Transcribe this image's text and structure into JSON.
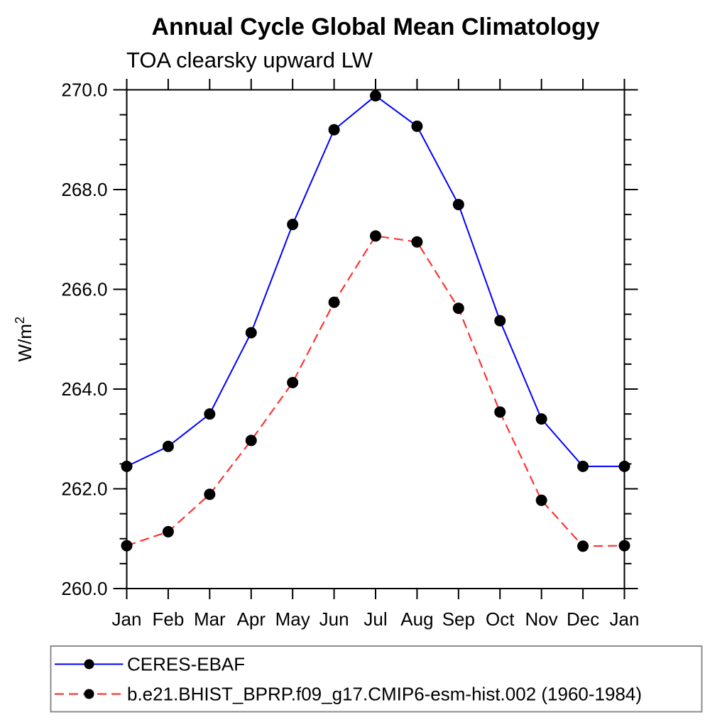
{
  "chart_data": {
    "type": "line",
    "title": "Annual Cycle Global Mean Climatology",
    "subtitle": "TOA clearsky upward LW",
    "xlabel": "",
    "ylabel": "W/m²",
    "ylabel_parts": {
      "base": "W/m",
      "sup": "2"
    },
    "categories": [
      "Jan",
      "Feb",
      "Mar",
      "Apr",
      "May",
      "Jun",
      "Jul",
      "Aug",
      "Sep",
      "Oct",
      "Nov",
      "Dec",
      "Jan"
    ],
    "ylim": [
      260.0,
      270.0
    ],
    "ytick_step": 2.0,
    "ytick_minor_step": 0.5,
    "ytick_labels": [
      "260.0",
      "262.0",
      "264.0",
      "266.0",
      "268.0",
      "270.0"
    ],
    "grid": false,
    "legend_position": "bottom-box",
    "axis_color": "#000000",
    "legend_border_color": "#8c8c8c",
    "series": [
      {
        "name": "CERES-EBAF",
        "color": "#0000ff",
        "line_style": "solid",
        "marker": "filled-circle",
        "marker_color": "#000000",
        "values": [
          262.45,
          262.85,
          263.5,
          265.13,
          267.3,
          269.2,
          269.88,
          269.27,
          267.7,
          265.37,
          263.4,
          262.45,
          262.45
        ]
      },
      {
        "name": "b.e21.BHIST_BPRP.f09_g17.CMIP6-esm-hist.002 (1960-1984)",
        "color": "#ff3333",
        "line_style": "dashed",
        "marker": "filled-circle",
        "marker_color": "#000000",
        "values": [
          260.86,
          261.14,
          261.89,
          262.97,
          264.13,
          265.74,
          267.07,
          266.95,
          265.62,
          263.54,
          261.77,
          260.85,
          260.86
        ]
      }
    ]
  }
}
